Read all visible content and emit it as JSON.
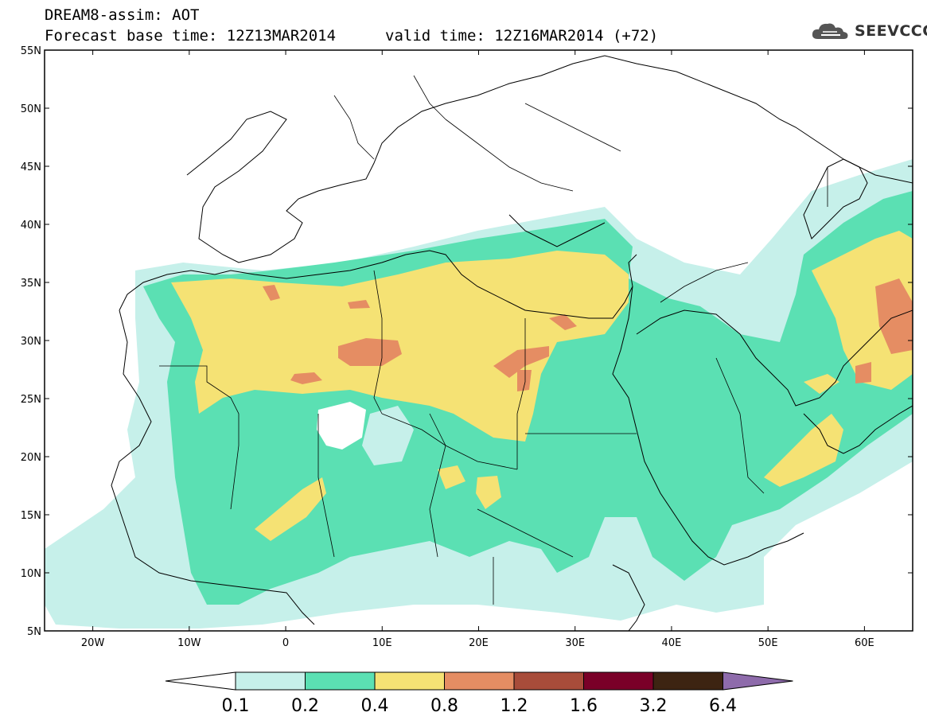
{
  "header": {
    "title": "DREAM8-assim: AOT",
    "base_time": "Forecast base time: 12Z13MAR2014",
    "valid_time": "valid time: 12Z16MAR2014 (+72)"
  },
  "logo": {
    "text": "SEEVCCC",
    "icon": "cloud-icon"
  },
  "axes": {
    "lat_labels": [
      "55N",
      "50N",
      "45N",
      "40N",
      "35N",
      "30N",
      "25N",
      "20N",
      "15N",
      "10N",
      "5N"
    ],
    "lon_labels": [
      "20W",
      "10W",
      "0",
      "10E",
      "20E",
      "30E",
      "40E",
      "50E",
      "60E"
    ],
    "lat_range": [
      5,
      55
    ],
    "lon_range": [
      -25,
      65
    ]
  },
  "colorbar": {
    "labels": [
      "0.1",
      "0.2",
      "0.4",
      "0.8",
      "1.2",
      "1.6",
      "3.2",
      "6.4"
    ],
    "colors": [
      "#ffffff",
      "#c6f0ea",
      "#5be0b3",
      "#f5e274",
      "#e58d63",
      "#a84c3a",
      "#7a0028",
      "#3d2412",
      "#8e6bab"
    ]
  },
  "field_colors": {
    "c1": "#c6f0ea",
    "c2": "#5be0b3",
    "c3": "#f5e274",
    "c4": "#e58d63"
  }
}
